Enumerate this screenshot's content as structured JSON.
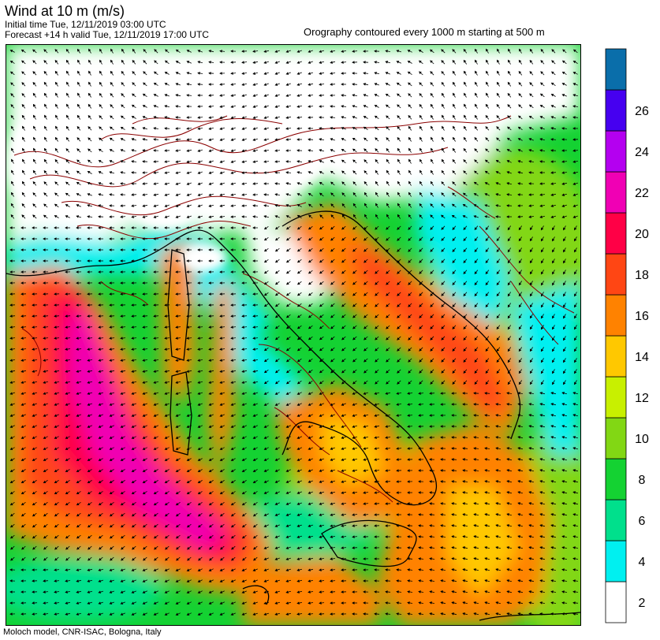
{
  "header": {
    "title": "Wind at 10 m (m/s)",
    "initial_time": "Initial time  Tue, 12/11/2019 03:00 UTC",
    "forecast": "Forecast +14 h valid  Tue, 12/11/2019 17:00 UTC",
    "orography_note": "Orography contoured every 1000 m starting at 500 m"
  },
  "footer": {
    "credit": "Moloch model, CNR-ISAC, Bologna, Italy"
  },
  "colorbar": {
    "levels": [
      {
        "label": "2",
        "color": "#ffffff"
      },
      {
        "label": "4",
        "color": "#00f0f0"
      },
      {
        "label": "6",
        "color": "#00e08c"
      },
      {
        "label": "8",
        "color": "#14d232"
      },
      {
        "label": "10",
        "color": "#82d714"
      },
      {
        "label": "12",
        "color": "#c8f000"
      },
      {
        "label": "14",
        "color": "#ffc800"
      },
      {
        "label": "16",
        "color": "#ff8200"
      },
      {
        "label": "18",
        "color": "#ff4614"
      },
      {
        "label": "20",
        "color": "#ff0046"
      },
      {
        "label": "22",
        "color": "#f000b4"
      },
      {
        "label": "24",
        "color": "#b400f0"
      },
      {
        "label": "26",
        "color": "#4600f0"
      },
      {
        "label": "",
        "color": "#0a6eaa"
      }
    ]
  },
  "map": {
    "field": "wind-speed-10m",
    "contour_color": "#8b0000",
    "arrow_color": "#000000"
  }
}
